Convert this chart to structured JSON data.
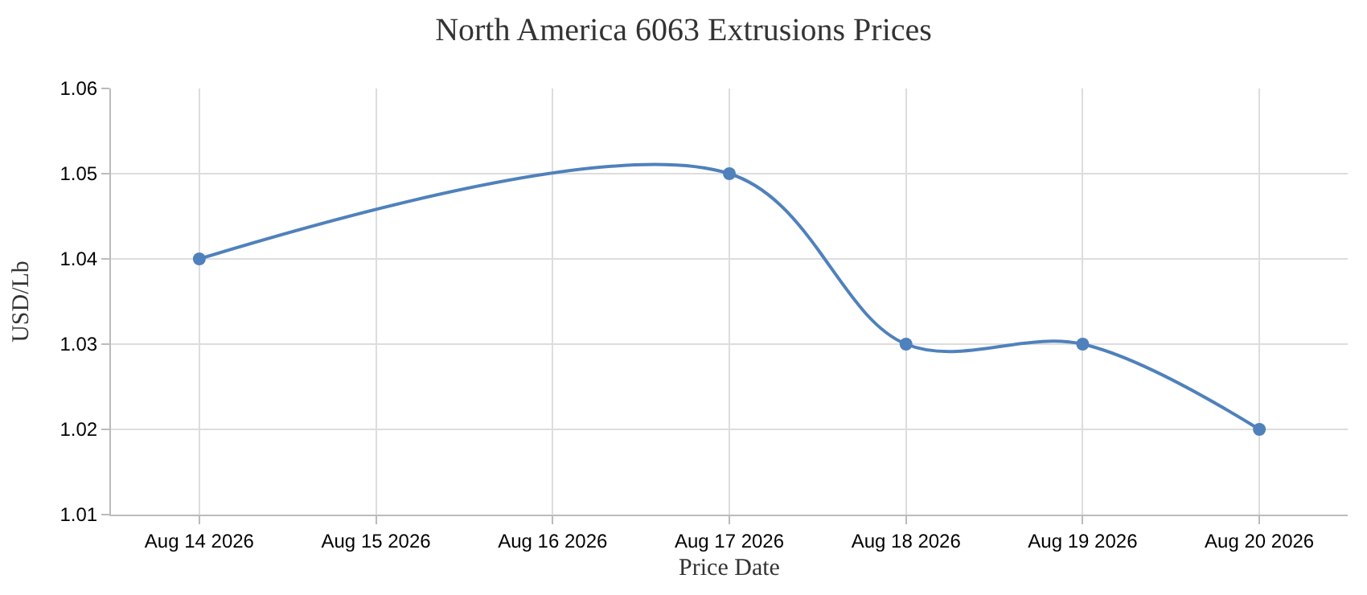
{
  "chart_data": {
    "type": "line",
    "title": "North America 6063 Extrusions Prices",
    "xlabel": "Price Date",
    "ylabel": "USD/Lb",
    "x": [
      "2026-08-14",
      "2026-08-17",
      "2026-08-18",
      "2026-08-19",
      "2026-08-20"
    ],
    "series": [
      {
        "color": "#4f81bc",
        "values": [
          1.04,
          1.05,
          1.03,
          1.03,
          1.02
        ]
      }
    ],
    "xlim": [
      "2026-08-13T12:00",
      "2026-08-20T12:00"
    ],
    "xticks": [
      {
        "value": "2026-08-14",
        "label": "Aug 14 2026"
      },
      {
        "value": "2026-08-15",
        "label": "Aug 15 2026"
      },
      {
        "value": "2026-08-16",
        "label": "Aug 16 2026"
      },
      {
        "value": "2026-08-17",
        "label": "Aug 17 2026"
      },
      {
        "value": "2026-08-18",
        "label": "Aug 18 2026"
      },
      {
        "value": "2026-08-19",
        "label": "Aug 19 2026"
      },
      {
        "value": "2026-08-20",
        "label": "Aug 20 2026"
      }
    ],
    "ylim": [
      1.01,
      1.06
    ],
    "yticks": [
      1.01,
      1.02,
      1.03,
      1.04,
      1.05,
      1.06
    ],
    "grid": true,
    "marker": "circle",
    "line_style": "solid"
  }
}
